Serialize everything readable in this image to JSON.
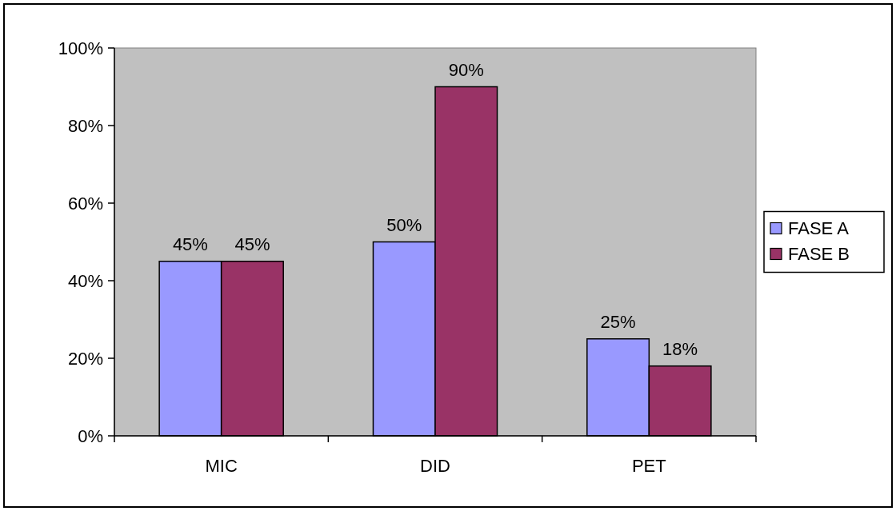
{
  "chart_data": {
    "type": "bar",
    "categories": [
      "MIC",
      "DID",
      "PET"
    ],
    "series": [
      {
        "name": "FASE A",
        "color": "#9999ff",
        "values": [
          45,
          50,
          25
        ],
        "value_labels": [
          "45%",
          "50%",
          "25%"
        ]
      },
      {
        "name": "FASE B",
        "color": "#993366",
        "values": [
          45,
          90,
          18
        ],
        "value_labels": [
          "45%",
          "90%",
          "18%"
        ]
      }
    ],
    "ylim": [
      0,
      100
    ],
    "yticks": [
      {
        "value": 0,
        "label": "0%"
      },
      {
        "value": 20,
        "label": "20%"
      },
      {
        "value": 40,
        "label": "40%"
      },
      {
        "value": 60,
        "label": "60%"
      },
      {
        "value": 80,
        "label": "80%"
      },
      {
        "value": 100,
        "label": "100%"
      }
    ],
    "grid": false,
    "legend": "right"
  }
}
